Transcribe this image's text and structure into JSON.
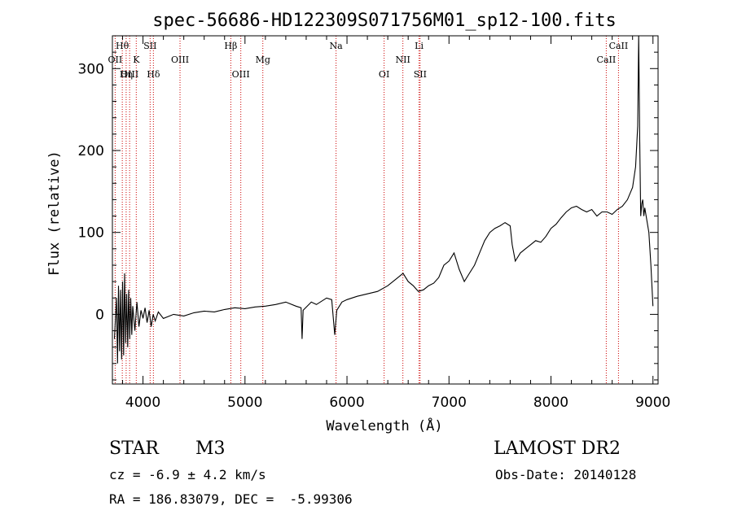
{
  "chart_data": {
    "type": "line",
    "title": "spec-56686-HD122309S071756M01_sp12-100.fits",
    "xlabel": "Wavelength (Å)",
    "ylabel": "Flux (relative)",
    "xlim": [
      3700,
      9050
    ],
    "ylim": [
      -85,
      340
    ],
    "xticks": [
      4000,
      5000,
      6000,
      7000,
      8000,
      9000
    ],
    "yticks": [
      0,
      100,
      200,
      300
    ],
    "grid": false,
    "line_color": "#000000",
    "marker_color": "#cc0000",
    "series": [
      {
        "values": [
          [
            3720,
            -30
          ],
          [
            3740,
            20
          ],
          [
            3750,
            -60
          ],
          [
            3760,
            35
          ],
          [
            3770,
            -45
          ],
          [
            3780,
            30
          ],
          [
            3790,
            -55
          ],
          [
            3800,
            40
          ],
          [
            3810,
            -50
          ],
          [
            3820,
            50
          ],
          [
            3830,
            -35
          ],
          [
            3840,
            25
          ],
          [
            3850,
            -40
          ],
          [
            3860,
            30
          ],
          [
            3870,
            -30
          ],
          [
            3880,
            20
          ],
          [
            3890,
            -25
          ],
          [
            3900,
            10
          ],
          [
            3920,
            -20
          ],
          [
            3940,
            15
          ],
          [
            3960,
            -15
          ],
          [
            3980,
            5
          ],
          [
            4000,
            -5
          ],
          [
            4020,
            8
          ],
          [
            4040,
            -10
          ],
          [
            4060,
            5
          ],
          [
            4080,
            -15
          ],
          [
            4100,
            0
          ],
          [
            4120,
            -8
          ],
          [
            4150,
            3
          ],
          [
            4200,
            -5
          ],
          [
            4300,
            0
          ],
          [
            4400,
            -2
          ],
          [
            4500,
            2
          ],
          [
            4600,
            4
          ],
          [
            4700,
            3
          ],
          [
            4800,
            6
          ],
          [
            4900,
            8
          ],
          [
            5000,
            7
          ],
          [
            5100,
            9
          ],
          [
            5200,
            10
          ],
          [
            5300,
            12
          ],
          [
            5400,
            15
          ],
          [
            5500,
            10
          ],
          [
            5550,
            8
          ],
          [
            5560,
            -30
          ],
          [
            5570,
            5
          ],
          [
            5650,
            15
          ],
          [
            5700,
            12
          ],
          [
            5800,
            20
          ],
          [
            5850,
            18
          ],
          [
            5880,
            -25
          ],
          [
            5900,
            5
          ],
          [
            5950,
            15
          ],
          [
            6000,
            18
          ],
          [
            6100,
            22
          ],
          [
            6200,
            25
          ],
          [
            6300,
            28
          ],
          [
            6400,
            35
          ],
          [
            6500,
            45
          ],
          [
            6550,
            50
          ],
          [
            6600,
            40
          ],
          [
            6650,
            35
          ],
          [
            6700,
            28
          ],
          [
            6750,
            30
          ],
          [
            6800,
            35
          ],
          [
            6850,
            38
          ],
          [
            6900,
            45
          ],
          [
            6950,
            60
          ],
          [
            7000,
            65
          ],
          [
            7050,
            75
          ],
          [
            7100,
            55
          ],
          [
            7150,
            40
          ],
          [
            7200,
            50
          ],
          [
            7250,
            60
          ],
          [
            7300,
            75
          ],
          [
            7350,
            90
          ],
          [
            7400,
            100
          ],
          [
            7450,
            105
          ],
          [
            7500,
            108
          ],
          [
            7550,
            112
          ],
          [
            7600,
            108
          ],
          [
            7620,
            85
          ],
          [
            7650,
            65
          ],
          [
            7700,
            75
          ],
          [
            7750,
            80
          ],
          [
            7800,
            85
          ],
          [
            7850,
            90
          ],
          [
            7900,
            88
          ],
          [
            7950,
            95
          ],
          [
            8000,
            105
          ],
          [
            8050,
            110
          ],
          [
            8100,
            118
          ],
          [
            8150,
            125
          ],
          [
            8200,
            130
          ],
          [
            8250,
            132
          ],
          [
            8300,
            128
          ],
          [
            8350,
            125
          ],
          [
            8400,
            128
          ],
          [
            8450,
            120
          ],
          [
            8500,
            125
          ],
          [
            8550,
            125
          ],
          [
            8600,
            122
          ],
          [
            8650,
            128
          ],
          [
            8700,
            132
          ],
          [
            8750,
            140
          ],
          [
            8800,
            155
          ],
          [
            8830,
            180
          ],
          [
            8850,
            230
          ],
          [
            8860,
            340
          ],
          [
            8870,
            210
          ],
          [
            8880,
            120
          ],
          [
            8890,
            135
          ],
          [
            8900,
            140
          ],
          [
            8910,
            120
          ],
          [
            8920,
            130
          ],
          [
            8940,
            115
          ],
          [
            8960,
            100
          ],
          [
            8980,
            60
          ],
          [
            9000,
            10
          ]
        ]
      }
    ],
    "lines": [
      {
        "label": "Hθ",
        "x": 3797,
        "row": 1
      },
      {
        "label": "OII",
        "x": 3727,
        "row": 2
      },
      {
        "label": "Hη",
        "x": 3835,
        "row": 3
      },
      {
        "label": "OIII",
        "x": 3869,
        "row": 3
      },
      {
        "label": "K",
        "x": 3934,
        "row": 2
      },
      {
        "label": "SII",
        "x": 4070,
        "row": 1
      },
      {
        "label": "Hδ",
        "x": 4102,
        "row": 3
      },
      {
        "label": "OIII",
        "x": 4363,
        "row": 2
      },
      {
        "label": "Hβ",
        "x": 4861,
        "row": 1
      },
      {
        "label": "OIII",
        "x": 4959,
        "row": 3
      },
      {
        "label": "Mg",
        "x": 5175,
        "row": 2
      },
      {
        "label": "Na",
        "x": 5893,
        "row": 1
      },
      {
        "label": "OI",
        "x": 6364,
        "row": 3
      },
      {
        "label": "NII",
        "x": 6548,
        "row": 2
      },
      {
        "label": "Li",
        "x": 6707,
        "row": 1
      },
      {
        "label": "SII",
        "x": 6717,
        "row": 3
      },
      {
        "label": "CaII",
        "x": 8542,
        "row": 2
      },
      {
        "label": "CaII",
        "x": 8662,
        "row": 1
      }
    ]
  },
  "info": {
    "class": "STAR",
    "subclass": "M3",
    "survey": "LAMOST DR2",
    "cz": "cz = -6.9 ± 4.2 km/s",
    "obs_date": "Obs-Date: 20140128",
    "radec": "RA = 186.83079, DEC =  -5.99306"
  }
}
